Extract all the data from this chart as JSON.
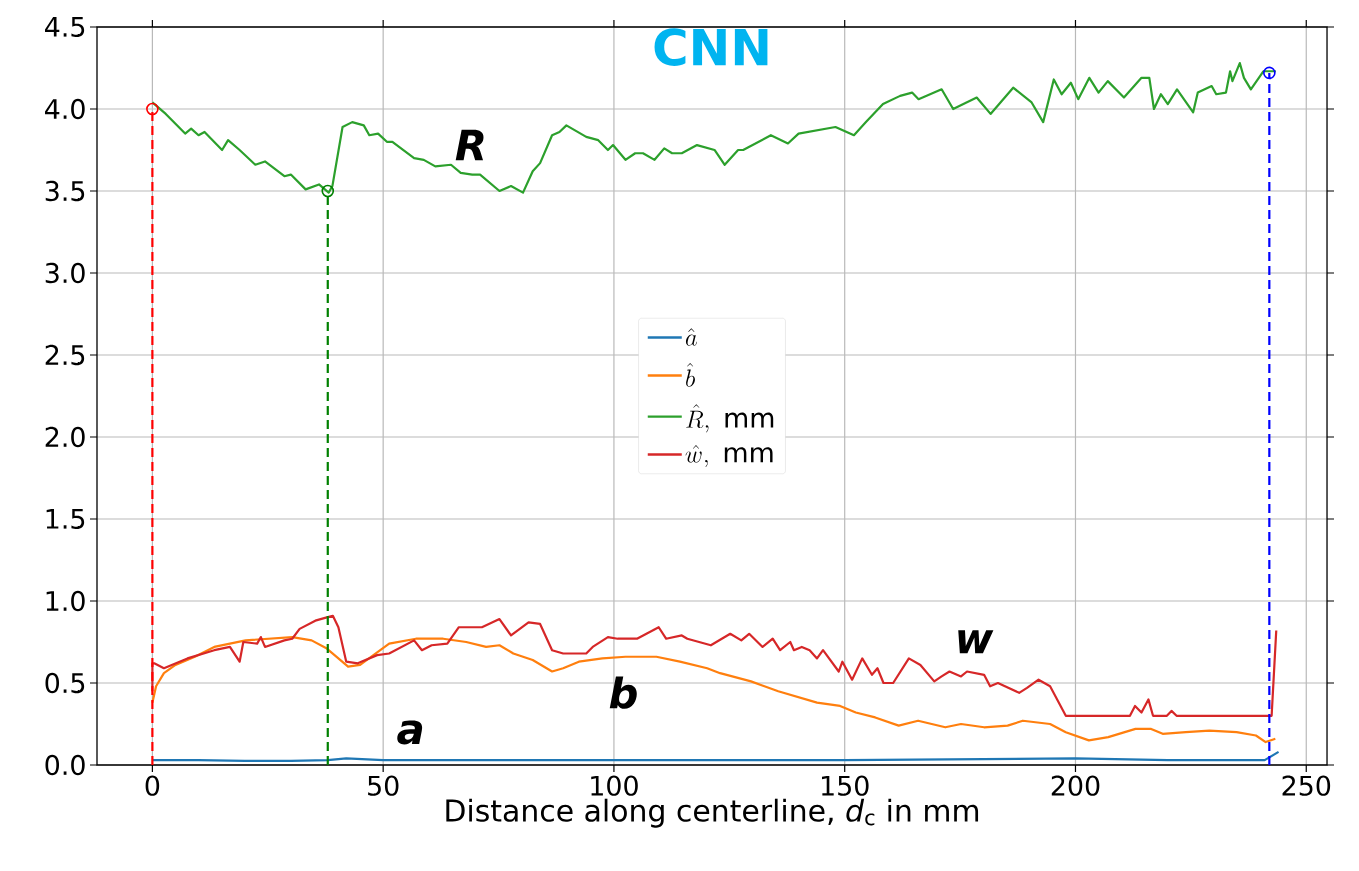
{
  "chart_data": {
    "type": "line",
    "title": "CNN",
    "xlabel": "Distance along centerline, *d*$_{c}$ in mm",
    "xlim": [
      -12,
      254.5
    ],
    "ylim": [
      0,
      4.5
    ],
    "xticks": [
      0,
      50,
      100,
      150,
      200,
      250
    ],
    "yticks": [
      {
        "value": 0,
        "label": "0.0"
      },
      {
        "value": 0.5,
        "label": "0.5"
      },
      {
        "value": 1,
        "label": "1.0"
      },
      {
        "value": 1.5,
        "label": "1.5"
      },
      {
        "value": 2,
        "label": "2.0"
      },
      {
        "value": 2.5,
        "label": "2.5"
      },
      {
        "value": 3,
        "label": "3.0"
      },
      {
        "value": 3.5,
        "label": "3.5"
      },
      {
        "value": 4,
        "label": "4.0"
      },
      {
        "value": 4.5,
        "label": "4.5"
      }
    ],
    "grid": true,
    "legend": "center",
    "series": [
      {
        "name": "\\hat{a}",
        "color": "#1f77b4",
        "x": [
          0,
          10,
          20,
          30,
          38,
          42,
          50,
          100,
          150,
          200,
          220,
          241,
          244
        ],
        "values": [
          0.03,
          0.03,
          0.025,
          0.025,
          0.03,
          0.04,
          0.03,
          0.03,
          0.03,
          0.04,
          0.03,
          0.03,
          0.08
        ]
      },
      {
        "name": "\\hat{b}",
        "color": "#ff7f0e",
        "x": [
          0,
          0.8,
          2.5,
          5,
          9.2,
          13.4,
          20.2,
          30.3,
          34.5,
          37.8,
          40.3,
          42.4,
          45,
          51.3,
          57.1,
          63,
          68,
          72.3,
          75.2,
          78.2,
          82.4,
          86.6,
          89,
          92.4,
          97.5,
          102.5,
          109.2,
          114.3,
          120.2,
          123,
          129.7,
          135.6,
          144,
          149,
          152.4,
          156.6,
          161.7,
          165.9,
          171.8,
          175.2,
          180.2,
          185.3,
          188.6,
          194.5,
          197.9,
          202.9,
          207.1,
          213,
          216.4,
          218.9,
          223.9,
          229,
          234.9,
          239.1,
          241.2,
          243.3
        ],
        "values": [
          0.38,
          0.48,
          0.56,
          0.61,
          0.66,
          0.72,
          0.76,
          0.78,
          0.76,
          0.71,
          0.65,
          0.6,
          0.61,
          0.74,
          0.77,
          0.77,
          0.75,
          0.72,
          0.73,
          0.68,
          0.64,
          0.57,
          0.59,
          0.63,
          0.65,
          0.66,
          0.66,
          0.63,
          0.59,
          0.56,
          0.51,
          0.45,
          0.38,
          0.36,
          0.32,
          0.29,
          0.24,
          0.27,
          0.23,
          0.25,
          0.23,
          0.24,
          0.27,
          0.25,
          0.2,
          0.15,
          0.17,
          0.22,
          0.22,
          0.19,
          0.2,
          0.21,
          0.2,
          0.18,
          0.14,
          0.16
        ]
      },
      {
        "name": "\\hat{R},\\ \\mathrm{mm}",
        "color": "#2ca02c",
        "x": [
          0,
          2.9,
          7.1,
          8.4,
          10,
          11.3,
          15.1,
          16.4,
          18.9,
          22.3,
          24.4,
          28.6,
          30,
          33.2,
          36.1,
          38.2,
          39,
          41.2,
          43.3,
          45.8,
          47,
          48.9,
          50.8,
          52,
          56.7,
          58.8,
          61.3,
          64.7,
          66.8,
          69.3,
          71,
          75.2,
          77.7,
          80.3,
          82.4,
          84,
          86.6,
          88.2,
          89.7,
          94,
          96.6,
          98.7,
          99.8,
          102.5,
          104.6,
          106.3,
          108.8,
          110.9,
          112.6,
          114.7,
          118,
          121.8,
          124,
          126.9,
          128,
          134,
          137.7,
          140,
          148,
          152,
          154.6,
          158.3,
          162,
          164.6,
          166,
          171,
          173.5,
          178.6,
          181.6,
          186.5,
          190.5,
          193,
          195.3,
          197,
          199,
          200.6,
          203,
          205,
          207,
          210.5,
          214.3,
          216,
          217,
          218.5,
          220,
          222,
          225.5,
          226.5,
          229.5,
          230.5,
          232.6,
          233.5,
          234,
          235.6,
          236.5,
          238,
          240.7,
          243.4
        ],
        "values": [
          4.04,
          3.97,
          3.85,
          3.88,
          3.84,
          3.86,
          3.75,
          3.81,
          3.75,
          3.66,
          3.68,
          3.59,
          3.6,
          3.51,
          3.54,
          3.49,
          3.53,
          3.89,
          3.92,
          3.9,
          3.84,
          3.85,
          3.8,
          3.8,
          3.7,
          3.69,
          3.65,
          3.66,
          3.61,
          3.6,
          3.6,
          3.5,
          3.53,
          3.49,
          3.62,
          3.67,
          3.84,
          3.86,
          3.9,
          3.83,
          3.81,
          3.75,
          3.78,
          3.69,
          3.73,
          3.73,
          3.69,
          3.76,
          3.73,
          3.73,
          3.78,
          3.75,
          3.66,
          3.75,
          3.75,
          3.84,
          3.79,
          3.85,
          3.89,
          3.84,
          3.92,
          4.03,
          4.08,
          4.1,
          4.06,
          4.12,
          4.0,
          4.07,
          3.97,
          4.13,
          4.04,
          3.92,
          4.18,
          4.09,
          4.16,
          4.06,
          4.19,
          4.1,
          4.17,
          4.07,
          4.19,
          4.19,
          4.0,
          4.09,
          4.03,
          4.12,
          3.98,
          4.1,
          4.14,
          4.09,
          4.1,
          4.23,
          4.17,
          4.28,
          4.19,
          4.12,
          4.23,
          4.23
        ]
      },
      {
        "name": "\\hat{w},\\ \\mathrm{mm}",
        "color": "#d62728",
        "x": [
          0,
          0,
          0.4,
          2.5,
          7.6,
          13.4,
          16.8,
          18.9,
          19.7,
          22.7,
          23.5,
          24.4,
          28.6,
          30.3,
          31.9,
          35.3,
          37.8,
          39.1,
          40.3,
          42,
          44.5,
          48.7,
          51.3,
          56.7,
          58.4,
          60.5,
          63.9,
          66.4,
          69.7,
          71.4,
          75.2,
          77.7,
          81.5,
          84,
          86.6,
          89,
          94,
          95.4,
          98.7,
          100.8,
          105,
          109.7,
          111.3,
          114.7,
          115.9,
          121,
          125.2,
          127.6,
          129.3,
          132.2,
          134.4,
          136,
          138.2,
          139,
          140.7,
          142.4,
          144,
          145.3,
          148.7,
          149.5,
          151.6,
          153.8,
          155.9,
          157.1,
          158.4,
          160.5,
          163.9,
          166.4,
          169.4,
          171,
          172.7,
          175.2,
          176.5,
          180.2,
          181.5,
          183.2,
          187.8,
          189.5,
          192,
          194.5,
          197.9,
          211.8,
          212.9,
          214.3,
          215.8,
          216.8,
          219.8,
          220.8,
          221.9,
          242.5,
          243.5
        ],
        "values": [
          0.45,
          0.62,
          0.62,
          0.59,
          0.65,
          0.7,
          0.72,
          0.63,
          0.75,
          0.74,
          0.78,
          0.72,
          0.76,
          0.77,
          0.83,
          0.88,
          0.9,
          0.91,
          0.84,
          0.63,
          0.62,
          0.67,
          0.68,
          0.76,
          0.7,
          0.73,
          0.74,
          0.84,
          0.84,
          0.84,
          0.89,
          0.79,
          0.87,
          0.86,
          0.7,
          0.68,
          0.68,
          0.72,
          0.78,
          0.77,
          0.77,
          0.84,
          0.77,
          0.79,
          0.77,
          0.73,
          0.8,
          0.76,
          0.8,
          0.72,
          0.77,
          0.7,
          0.75,
          0.7,
          0.72,
          0.7,
          0.65,
          0.7,
          0.57,
          0.63,
          0.52,
          0.65,
          0.55,
          0.59,
          0.5,
          0.5,
          0.65,
          0.61,
          0.51,
          0.54,
          0.57,
          0.54,
          0.57,
          0.55,
          0.48,
          0.5,
          0.44,
          0.47,
          0.52,
          0.48,
          0.3,
          0.3,
          0.36,
          0.32,
          0.4,
          0.3,
          0.3,
          0.33,
          0.3,
          0.3,
          0.82
        ]
      },
      {
        "type": "line",
        "color": "#ff0000",
        "line_style": "dashed",
        "x": [
          0,
          0
        ],
        "values": [
          0,
          4.0
        ]
      },
      {
        "type": "line",
        "color": "#008000",
        "line_style": "dashed",
        "x": [
          38,
          38
        ],
        "values": [
          0,
          3.5
        ]
      },
      {
        "type": "line",
        "color": "#0000ff",
        "line_style": "dashed",
        "x": [
          242,
          242
        ],
        "values": [
          0,
          4.22
        ]
      },
      {
        "type": "scatter",
        "marker": "circle",
        "x": [
          0,
          38,
          242
        ],
        "values": [
          4.0,
          3.5,
          4.22
        ],
        "colors": [
          "#ff0000",
          "#008000",
          "#0000ff"
        ]
      }
    ],
    "annotations": [
      "*R*",
      "*a*",
      "*b*",
      "*w*"
    ]
  }
}
